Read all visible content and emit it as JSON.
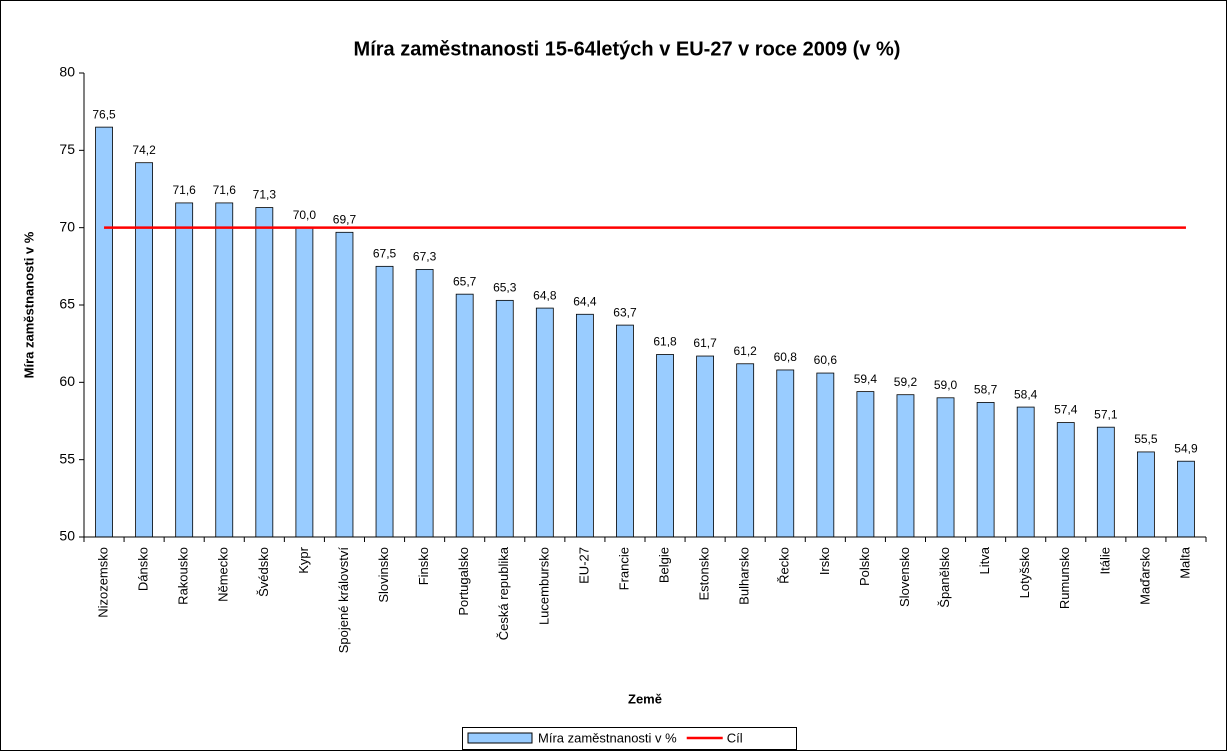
{
  "chart_data": {
    "type": "bar",
    "title": "Míra zaměstnanosti 15-64letých v EU-27 v roce 2009 (v %)",
    "x_label": "Země",
    "y_label": "Míra zaměstnanosti v %",
    "categories": [
      "Nizozemsko",
      "Dánsko",
      "Rakousko",
      "Německo",
      "Švédsko",
      "Kypr",
      "Spojené království",
      "Slovinsko",
      "Finsko",
      "Portugalsko",
      "Česká republika",
      "Lucembursko",
      "EU-27",
      "Francie",
      "Belgie",
      "Estonsko",
      "Bulharsko",
      "Řecko",
      "Irsko",
      "Polsko",
      "Slovensko",
      "Španělsko",
      "Litva",
      "Lotyšsko",
      "Rumunsko",
      "Itálie",
      "Maďarsko",
      "Malta"
    ],
    "series": [
      {
        "name": "Míra zaměstnanosti v %",
        "type": "bar",
        "color": "#99ccff",
        "values": [
          76.5,
          74.2,
          71.6,
          71.6,
          71.3,
          70.0,
          69.7,
          67.5,
          67.3,
          65.7,
          65.3,
          64.8,
          64.4,
          63.7,
          61.8,
          61.7,
          61.2,
          60.8,
          60.6,
          59.4,
          59.2,
          59.0,
          58.7,
          58.4,
          57.4,
          57.1,
          55.5,
          54.9
        ],
        "value_labels": [
          "76,5",
          "74,2",
          "71,6",
          "71,6",
          "71,3",
          "70,0",
          "69,7",
          "67,5",
          "67,3",
          "65,7",
          "65,3",
          "64,8",
          "64,4",
          "63,7",
          "61,8",
          "61,7",
          "61,2",
          "60,8",
          "60,6",
          "59,4",
          "59,2",
          "59,0",
          "58,7",
          "58,4",
          "57,4",
          "57,1",
          "55,5",
          "54,9"
        ]
      },
      {
        "name": "Cíl",
        "type": "line",
        "color": "#ff0000",
        "values": [
          70,
          70,
          70,
          70,
          70,
          70,
          70,
          70,
          70,
          70,
          70,
          70,
          70,
          70,
          70,
          70,
          70,
          70,
          70,
          70,
          70,
          70,
          70,
          70,
          70,
          70,
          70,
          70
        ]
      }
    ],
    "ylim": [
      50,
      80
    ],
    "yticks": [
      50,
      55,
      60,
      65,
      70,
      75,
      80
    ],
    "legend": "bottom"
  }
}
